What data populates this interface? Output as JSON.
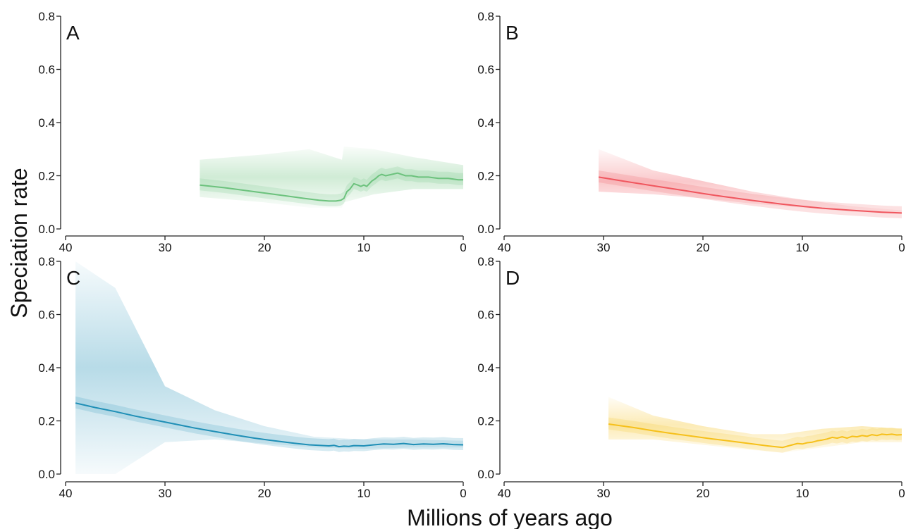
{
  "figure": {
    "ylabel": "Speciation rate",
    "xlabel": "Millions of years ago"
  },
  "chart_data": [
    {
      "type": "line",
      "panel": "A",
      "color": "#6cc27d",
      "xlim": [
        40,
        0
      ],
      "ylim": [
        0,
        0.8
      ],
      "xticks": [
        40,
        30,
        20,
        10,
        0
      ],
      "xtick_labels": [
        "40",
        "30",
        "20",
        "10",
        "0"
      ],
      "yticks": [
        0.0,
        0.2,
        0.4,
        0.6,
        0.8
      ],
      "ytick_labels": [
        "0.0",
        "0.2",
        "0.4",
        "0.6",
        "0.8"
      ],
      "series": [
        {
          "x": [
            26.5,
            24,
            22,
            20,
            18,
            16,
            14.5,
            13.5,
            12.8,
            12.3,
            12.0,
            11.7,
            11.4,
            11.0,
            10.6,
            10.3,
            10.0,
            9.7,
            9.2,
            8.8,
            8.5,
            8.2,
            7.8,
            7.2,
            6.6,
            6.2,
            5.8,
            5.2,
            4.5,
            3.5,
            2.5,
            1.5,
            0.5,
            0
          ],
          "y": [
            0.165,
            0.155,
            0.145,
            0.135,
            0.125,
            0.115,
            0.108,
            0.105,
            0.105,
            0.108,
            0.115,
            0.14,
            0.15,
            0.17,
            0.165,
            0.16,
            0.165,
            0.16,
            0.18,
            0.19,
            0.2,
            0.205,
            0.2,
            0.205,
            0.21,
            0.205,
            0.2,
            0.2,
            0.195,
            0.195,
            0.19,
            0.19,
            0.185,
            0.185
          ]
        }
      ],
      "band": {
        "x": [
          26.5,
          20,
          15.5,
          12.2,
          12.0,
          9.0,
          5.0,
          0
        ],
        "lower": [
          0.12,
          0.1,
          0.08,
          0.08,
          0.1,
          0.13,
          0.15,
          0.15
        ],
        "upper": [
          0.26,
          0.28,
          0.3,
          0.26,
          0.31,
          0.3,
          0.27,
          0.24
        ]
      }
    },
    {
      "type": "line",
      "panel": "B",
      "color": "#f0565e",
      "xlim": [
        40,
        0
      ],
      "ylim": [
        0,
        0.8
      ],
      "xticks": [
        40,
        30,
        20,
        10,
        0
      ],
      "xtick_labels": [
        "40",
        "30",
        "20",
        "10",
        "0"
      ],
      "yticks": [
        0.0,
        0.2,
        0.4,
        0.6,
        0.8
      ],
      "ytick_labels": [
        "0.0",
        "0.2",
        "0.4",
        "0.6",
        "0.8"
      ],
      "series": [
        {
          "x": [
            30.5,
            28,
            25,
            22,
            20,
            18,
            15,
            12,
            10,
            8,
            5,
            2,
            0
          ],
          "y": [
            0.195,
            0.18,
            0.162,
            0.145,
            0.133,
            0.122,
            0.107,
            0.093,
            0.085,
            0.078,
            0.07,
            0.063,
            0.06
          ]
        }
      ],
      "band": {
        "x": [
          30.5,
          25,
          20,
          15,
          10,
          5,
          0
        ],
        "lower": [
          0.14,
          0.13,
          0.115,
          0.095,
          0.08,
          0.065,
          0.055
        ],
        "upper": [
          0.3,
          0.22,
          0.18,
          0.14,
          0.11,
          0.085,
          0.07
        ]
      }
    },
    {
      "type": "line",
      "panel": "C",
      "color": "#1f8fb6",
      "xlim": [
        40,
        0
      ],
      "ylim": [
        0,
        0.8
      ],
      "xticks": [
        40,
        30,
        20,
        10,
        0
      ],
      "xtick_labels": [
        "40",
        "30",
        "20",
        "10",
        "0"
      ],
      "yticks": [
        0.0,
        0.2,
        0.4,
        0.6,
        0.8
      ],
      "ytick_labels": [
        "0.0",
        "0.2",
        "0.4",
        "0.6",
        "0.8"
      ],
      "series": [
        {
          "x": [
            39,
            37,
            35,
            33,
            31,
            29,
            27,
            25,
            23,
            21,
            19,
            17,
            15.5,
            14.5,
            13.5,
            13.0,
            12.5,
            12.0,
            11.5,
            11.0,
            10.0,
            9.0,
            8.0,
            7.0,
            6.0,
            5.0,
            4.0,
            3.0,
            2.0,
            1.0,
            0
          ],
          "y": [
            0.267,
            0.25,
            0.235,
            0.218,
            0.203,
            0.188,
            0.173,
            0.16,
            0.147,
            0.135,
            0.125,
            0.116,
            0.11,
            0.108,
            0.106,
            0.108,
            0.103,
            0.105,
            0.104,
            0.107,
            0.106,
            0.11,
            0.113,
            0.112,
            0.115,
            0.111,
            0.113,
            0.112,
            0.114,
            0.111,
            0.11
          ]
        }
      ],
      "band": {
        "x": [
          39,
          35,
          30,
          25,
          20,
          15,
          10,
          5,
          0
        ],
        "lower": [
          0.0,
          0.0,
          0.12,
          0.13,
          0.115,
          0.1,
          0.095,
          0.1,
          0.1
        ],
        "upper": [
          0.8,
          0.7,
          0.33,
          0.24,
          0.18,
          0.14,
          0.13,
          0.13,
          0.125
        ]
      }
    },
    {
      "type": "line",
      "panel": "D",
      "color": "#f6c01a",
      "xlim": [
        40,
        0
      ],
      "ylim": [
        0,
        0.8
      ],
      "xticks": [
        40,
        30,
        20,
        10,
        0
      ],
      "xtick_labels": [
        "40",
        "30",
        "20",
        "10",
        "0"
      ],
      "yticks": [
        0.0,
        0.2,
        0.4,
        0.6,
        0.8
      ],
      "ytick_labels": [
        "0.0",
        "0.2",
        "0.4",
        "0.6",
        "0.8"
      ],
      "series": [
        {
          "x": [
            29.5,
            27,
            25,
            23,
            21,
            19,
            17,
            15,
            13.5,
            12.5,
            12.0,
            11.5,
            11.0,
            10.5,
            10.0,
            9.5,
            9.0,
            8.5,
            8.0,
            7.5,
            7.0,
            6.5,
            6.0,
            5.5,
            5.0,
            4.5,
            4.0,
            3.5,
            3.0,
            2.5,
            2.0,
            1.5,
            1.0,
            0.5,
            0
          ],
          "y": [
            0.188,
            0.175,
            0.163,
            0.152,
            0.142,
            0.132,
            0.123,
            0.113,
            0.106,
            0.102,
            0.1,
            0.105,
            0.11,
            0.115,
            0.113,
            0.118,
            0.12,
            0.125,
            0.128,
            0.132,
            0.138,
            0.135,
            0.14,
            0.135,
            0.142,
            0.14,
            0.145,
            0.142,
            0.148,
            0.145,
            0.15,
            0.148,
            0.15,
            0.147,
            0.148
          ]
        }
      ],
      "band": {
        "x": [
          29.5,
          25,
          20,
          15,
          12,
          8,
          4,
          0
        ],
        "lower": [
          0.13,
          0.13,
          0.11,
          0.09,
          0.08,
          0.1,
          0.12,
          0.12
        ],
        "upper": [
          0.29,
          0.22,
          0.18,
          0.15,
          0.15,
          0.17,
          0.18,
          0.17
        ]
      }
    }
  ]
}
